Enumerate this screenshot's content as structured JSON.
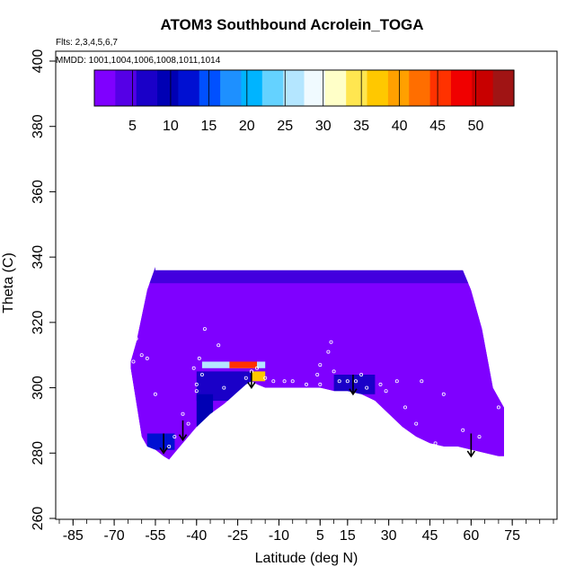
{
  "chart_data": {
    "type": "heatmap",
    "title": "ATOM3 Southbound Acrolein_TOGA",
    "subtitle_flights": "Flts: 2,3,4,5,6,7",
    "subtitle_dates": "MMDD: 1001,1004,1006,1008,1011,1014",
    "xlabel": "Latitude (deg N)",
    "ylabel": "Theta (C)",
    "xlim": [
      -90,
      90
    ],
    "ylim": [
      260,
      400
    ],
    "x_tick_labels": [
      "-85",
      "-70",
      "-55",
      "-40",
      "-25",
      "-10",
      "5",
      "15",
      "30",
      "45",
      "60",
      "75"
    ],
    "x_tick_values": [
      -85,
      -70,
      -55,
      -40,
      -25,
      -10,
      5,
      15,
      30,
      45,
      60,
      75
    ],
    "y_tick_labels": [
      "260",
      "280",
      "300",
      "320",
      "340",
      "360",
      "380",
      "400"
    ],
    "y_tick_values": [
      260,
      280,
      300,
      320,
      340,
      360,
      380,
      400
    ],
    "colorbar": {
      "range": [
        0,
        55
      ],
      "tick_labels": [
        "5",
        "10",
        "15",
        "20",
        "25",
        "30",
        "35",
        "40",
        "45",
        "50"
      ],
      "tick_values": [
        5,
        10,
        15,
        20,
        25,
        30,
        35,
        40,
        45,
        50
      ],
      "colors": [
        "#7f00ff",
        "#5500e6",
        "#1a00c8",
        "#0000b4",
        "#0010d2",
        "#0050ff",
        "#1e90ff",
        "#00b4ff",
        "#64d2ff",
        "#b4e6ff",
        "#f0faff",
        "#ffffc8",
        "#ffe650",
        "#ffc800",
        "#ffa000",
        "#ff6e00",
        "#ff3200",
        "#f00000",
        "#c80000",
        "#a01414"
      ]
    },
    "field": {
      "boundary_lat": [
        -64,
        -64,
        -60,
        -58,
        -55,
        -52,
        -50,
        -49,
        -48,
        -46,
        -43,
        -40,
        -35,
        -30,
        -26,
        -22,
        -20,
        -18,
        -15,
        -10,
        -5,
        0,
        5,
        10,
        15,
        20,
        25,
        30,
        35,
        40,
        45,
        50,
        55,
        60,
        65,
        70,
        72,
        72,
        68,
        64,
        60,
        57,
        -55,
        -55,
        -58,
        -60,
        -62,
        -64
      ],
      "boundary_theta": [
        308,
        306,
        285,
        282,
        281,
        279,
        278,
        279,
        280,
        282,
        285,
        288,
        292,
        295,
        298,
        301,
        302,
        301,
        300,
        300,
        300,
        300,
        300,
        299,
        299,
        298,
        296,
        292,
        288,
        285,
        283,
        282,
        282,
        281,
        280,
        279,
        279,
        294,
        300,
        318,
        330,
        336,
        336,
        337,
        330,
        322,
        314,
        308
      ],
      "background_value": 2,
      "features": [
        {
          "lat": [
            -38,
            -15
          ],
          "theta": [
            306,
            308
          ],
          "value": 25
        },
        {
          "lat": [
            -28,
            -18
          ],
          "theta": [
            306,
            308
          ],
          "value": 45
        },
        {
          "lat": [
            -22,
            -15
          ],
          "theta": [
            302,
            305
          ],
          "value": 38
        },
        {
          "lat": [
            -40,
            -20
          ],
          "theta": [
            296,
            305
          ],
          "value": 8
        },
        {
          "lat": [
            -58,
            -48
          ],
          "theta": [
            281,
            286
          ],
          "value": 12
        },
        {
          "lat": [
            10,
            25
          ],
          "theta": [
            298,
            304
          ],
          "value": 7
        },
        {
          "lat": [
            -40,
            -34
          ],
          "theta": [
            288,
            298
          ],
          "value": 9
        }
      ]
    },
    "sample_points": [
      [
        -62,
        315
      ],
      [
        -58,
        309
      ],
      [
        -60,
        310
      ],
      [
        -63,
        308
      ],
      [
        -55,
        298
      ],
      [
        -50,
        282
      ],
      [
        -48,
        285
      ],
      [
        -45,
        292
      ],
      [
        -43,
        289
      ],
      [
        -40,
        299
      ],
      [
        -40,
        301
      ],
      [
        -41,
        306
      ],
      [
        -39,
        309
      ],
      [
        -38,
        304
      ],
      [
        -37,
        318
      ],
      [
        -32,
        313
      ],
      [
        -30,
        300
      ],
      [
        -25,
        296
      ],
      [
        -22,
        303
      ],
      [
        -20,
        305
      ],
      [
        -18,
        306
      ],
      [
        -15,
        303
      ],
      [
        -12,
        302
      ],
      [
        -8,
        302
      ],
      [
        -5,
        302
      ],
      [
        0,
        301
      ],
      [
        5,
        301
      ],
      [
        4,
        304
      ],
      [
        5,
        307
      ],
      [
        8,
        311
      ],
      [
        9,
        314
      ],
      [
        10,
        305
      ],
      [
        12,
        302
      ],
      [
        15,
        302
      ],
      [
        18,
        302
      ],
      [
        20,
        304
      ],
      [
        22,
        300
      ],
      [
        27,
        301
      ],
      [
        29,
        299
      ],
      [
        33,
        302
      ],
      [
        36,
        294
      ],
      [
        40,
        289
      ],
      [
        42,
        302
      ],
      [
        47,
        283
      ],
      [
        50,
        298
      ],
      [
        57,
        287
      ],
      [
        63,
        285
      ],
      [
        70,
        294
      ]
    ],
    "flight_arrows": [
      {
        "lat": -52,
        "theta_top": 286,
        "theta_bottom": 280
      },
      {
        "lat": -45,
        "theta_top": 290,
        "theta_bottom": 284
      },
      {
        "lat": -20,
        "theta_top": 305,
        "theta_bottom": 300
      },
      {
        "lat": 17,
        "theta_top": 304,
        "theta_bottom": 298
      },
      {
        "lat": 60,
        "theta_top": 286,
        "theta_bottom": 279
      }
    ],
    "grid": false,
    "legend": "colorbar-top-inside"
  }
}
